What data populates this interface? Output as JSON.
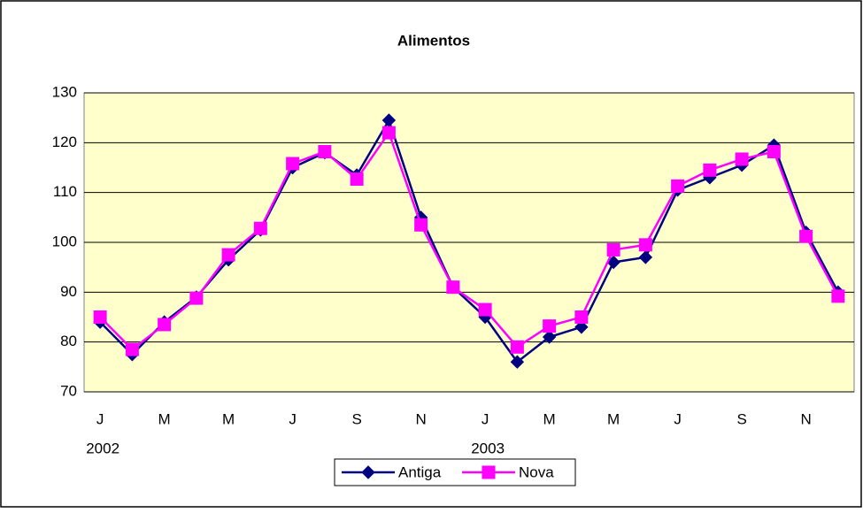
{
  "chart_data": {
    "type": "line",
    "title": "Alimentos",
    "categories": [
      "J",
      null,
      "M",
      null,
      "M",
      null,
      "J",
      null,
      "S",
      null,
      "N",
      null,
      "J",
      null,
      "M",
      null,
      "M",
      null,
      "J",
      null,
      "S",
      null,
      "N",
      null
    ],
    "years": [
      "2002",
      null,
      null,
      null,
      null,
      null,
      null,
      null,
      null,
      null,
      null,
      null,
      "2003",
      null,
      null,
      null,
      null,
      null,
      null,
      null,
      null,
      null,
      null,
      null
    ],
    "series": [
      {
        "name": "Antiga",
        "color": "#000080",
        "marker": "diamond",
        "values": [
          84,
          77.5,
          84,
          89,
          96.5,
          102.5,
          115,
          118,
          113.5,
          124.5,
          105,
          91,
          85,
          76,
          81,
          83,
          96,
          97,
          110.5,
          113,
          115.5,
          119.5,
          102,
          90
        ]
      },
      {
        "name": "Nova",
        "color": "#ff00ff",
        "marker": "square",
        "values": [
          85,
          78.5,
          83.5,
          88.8,
          97.5,
          102.8,
          115.8,
          118.2,
          112.7,
          122,
          103.5,
          91,
          86.5,
          79,
          83.2,
          85,
          98.5,
          99.5,
          111.3,
          114.5,
          116.7,
          118.2,
          101.2,
          89.2
        ]
      }
    ],
    "ylim": [
      70,
      130
    ],
    "yticks": [
      70,
      80,
      90,
      100,
      110,
      120,
      130
    ],
    "grid": true,
    "plot_background": "#ffffcc",
    "legend": "bottom"
  }
}
